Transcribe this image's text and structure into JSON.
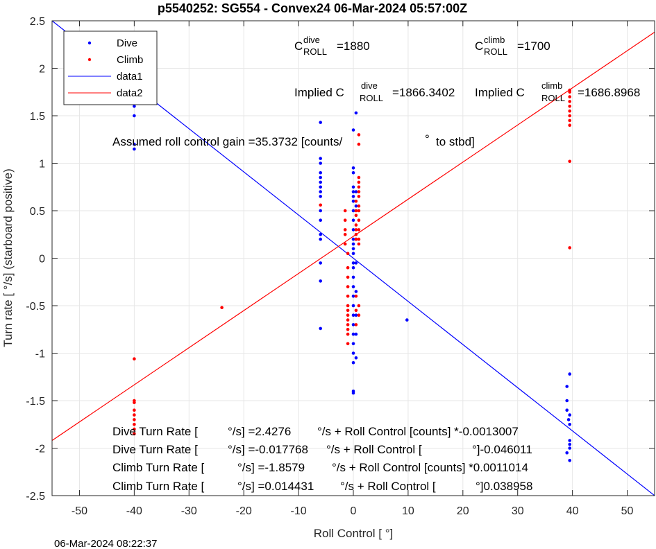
{
  "chart_data": {
    "type": "scatter",
    "title": "p5540252: SG554 - Convex24 06-Mar-2024 05:57:00Z",
    "xlabel": "Roll Control [   °]",
    "ylabel": "Turn rate [   °/s] (starboard positive)",
    "xlim": [
      -55,
      55
    ],
    "ylim": [
      -2.5,
      2.5
    ],
    "xticks": [
      -50,
      -40,
      -30,
      -20,
      -10,
      0,
      10,
      20,
      30,
      40,
      50
    ],
    "yticks": [
      -2.5,
      -2,
      -1.5,
      -1,
      -0.5,
      0,
      0.5,
      1,
      1.5,
      2,
      2.5
    ],
    "ytick_labels": [
      "-2.5",
      "-2",
      "-1.5",
      "-1",
      "-0.5",
      "0",
      "0.5",
      "1",
      "1.5",
      "2",
      "2.5"
    ],
    "grid": true,
    "legend_position": "top-left",
    "series": [
      {
        "name": "Dive",
        "kind": "scatter",
        "color": "#0000ff",
        "points": [
          [
            -40,
            2.2
          ],
          [
            -40,
            2.1
          ],
          [
            -40,
            2.05
          ],
          [
            -40,
            1.95
          ],
          [
            -40,
            1.85
          ],
          [
            -40,
            1.8
          ],
          [
            -40,
            1.75
          ],
          [
            -40,
            1.6
          ],
          [
            -40,
            1.5
          ],
          [
            -40,
            1.15
          ],
          [
            -40,
            1.2
          ],
          [
            -6,
            1.43
          ],
          [
            -6,
            1.05
          ],
          [
            -6,
            1.0
          ],
          [
            -6,
            0.9
          ],
          [
            -6,
            0.85
          ],
          [
            -6,
            0.8
          ],
          [
            -6,
            0.75
          ],
          [
            -6,
            0.7
          ],
          [
            -6,
            0.65
          ],
          [
            -6,
            0.5
          ],
          [
            -6,
            0.4
          ],
          [
            -6,
            0.25
          ],
          [
            -6,
            0.2
          ],
          [
            -6,
            -0.05
          ],
          [
            -6,
            -0.24
          ],
          [
            -6,
            -0.74
          ],
          [
            0,
            1.35
          ],
          [
            0,
            0.95
          ],
          [
            0,
            0.9
          ],
          [
            0,
            0.75
          ],
          [
            0,
            0.7
          ],
          [
            0,
            0.65
          ],
          [
            0,
            0.6
          ],
          [
            0,
            0.5
          ],
          [
            0,
            0.4
          ],
          [
            0,
            0.3
          ],
          [
            0,
            0.2
          ],
          [
            0,
            0.15
          ],
          [
            0,
            0.1
          ],
          [
            0,
            0.05
          ],
          [
            0,
            -0.05
          ],
          [
            0,
            -0.1
          ],
          [
            0,
            -0.2
          ],
          [
            0,
            -0.3
          ],
          [
            0,
            -0.4
          ],
          [
            0,
            -0.5
          ],
          [
            0,
            -0.6
          ],
          [
            0,
            -0.7
          ],
          [
            0,
            -0.8
          ],
          [
            0,
            -0.9
          ],
          [
            0,
            -1.0
          ],
          [
            0,
            -1.1
          ],
          [
            0,
            -1.4
          ],
          [
            0,
            -1.42
          ],
          [
            0.5,
            1.53
          ],
          [
            0.5,
            0.7
          ],
          [
            0.5,
            0.55
          ],
          [
            0.5,
            0.2
          ],
          [
            0.5,
            -0.05
          ],
          [
            0.5,
            -0.35
          ],
          [
            0.5,
            -0.6
          ],
          [
            0.5,
            -0.8
          ],
          [
            0.5,
            -1.05
          ],
          [
            9.8,
            -0.65
          ],
          [
            39,
            -1.6
          ],
          [
            39,
            -1.35
          ],
          [
            39,
            -1.5
          ],
          [
            39,
            -2.05
          ],
          [
            39.3,
            -1.7
          ],
          [
            39.5,
            -1.65
          ],
          [
            39.5,
            -1.75
          ],
          [
            39.5,
            -1.92
          ],
          [
            39.5,
            -1.96
          ],
          [
            39.5,
            -2.0
          ],
          [
            39.5,
            -2.13
          ],
          [
            39.5,
            -1.22
          ]
        ]
      },
      {
        "name": "Climb",
        "kind": "scatter",
        "color": "#ff0000",
        "points": [
          [
            -40,
            -1.06
          ],
          [
            -40,
            -1.5
          ],
          [
            -40,
            -1.52
          ],
          [
            -40,
            -1.6
          ],
          [
            -40,
            -1.65
          ],
          [
            -40,
            -1.7
          ],
          [
            -40,
            -1.75
          ],
          [
            -40,
            -1.8
          ],
          [
            -40,
            -1.85
          ],
          [
            -24,
            -0.52
          ],
          [
            -6,
            0.56
          ],
          [
            -1.5,
            0.5
          ],
          [
            -1.5,
            0.4
          ],
          [
            -1.5,
            0.3
          ],
          [
            -1.5,
            0.25
          ],
          [
            -1.5,
            0.15
          ],
          [
            -1,
            0.05
          ],
          [
            -1,
            -0.1
          ],
          [
            -1,
            -0.2
          ],
          [
            -1,
            -0.3
          ],
          [
            -1,
            -0.4
          ],
          [
            -1,
            -0.5
          ],
          [
            -1,
            -0.55
          ],
          [
            -1,
            -0.6
          ],
          [
            -1,
            -0.65
          ],
          [
            -1,
            -0.7
          ],
          [
            -1,
            -0.75
          ],
          [
            -1,
            -0.8
          ],
          [
            -1,
            -0.9
          ],
          [
            0.5,
            0.6
          ],
          [
            0.5,
            0.5
          ],
          [
            0.5,
            0.45
          ],
          [
            0.5,
            0.35
          ],
          [
            0.5,
            0.3
          ],
          [
            0.5,
            0.25
          ],
          [
            0.5,
            0.2
          ],
          [
            0.5,
            -0.4
          ],
          [
            0.5,
            -0.55
          ],
          [
            0.5,
            -0.7
          ],
          [
            1,
            1.3
          ],
          [
            1,
            1.2
          ],
          [
            1,
            0.85
          ],
          [
            1,
            0.8
          ],
          [
            1,
            0.75
          ],
          [
            1,
            0.7
          ],
          [
            1,
            0.65
          ],
          [
            1,
            0.55
          ],
          [
            1,
            0.5
          ],
          [
            1,
            0.4
          ],
          [
            1,
            0.3
          ],
          [
            1,
            0.2
          ],
          [
            1,
            0.15
          ],
          [
            1,
            -0.5
          ],
          [
            1,
            -0.6
          ],
          [
            39.5,
            1.77
          ],
          [
            39.5,
            1.75
          ],
          [
            39.5,
            1.7
          ],
          [
            39.5,
            1.65
          ],
          [
            39.5,
            1.6
          ],
          [
            39.5,
            1.55
          ],
          [
            39.5,
            1.5
          ],
          [
            39.5,
            1.45
          ],
          [
            39.5,
            1.4
          ],
          [
            39.5,
            1.02
          ],
          [
            39.5,
            0.11
          ]
        ]
      },
      {
        "name": "data1",
        "kind": "line",
        "color": "#0000ff",
        "points": [
          [
            -55,
            2.5
          ],
          [
            55,
            -2.5
          ]
        ]
      },
      {
        "name": "data2",
        "kind": "line",
        "color": "#ff0000",
        "points": [
          [
            -55,
            -1.92
          ],
          [
            55,
            2.38
          ]
        ]
      }
    ],
    "annotations": {
      "c_dive_main": "C",
      "c_dive_sup": "dive",
      "c_dive_sub": "ROLL",
      "c_dive_val": "=1880",
      "c_climb_main": "C",
      "c_climb_sup": "climb",
      "c_climb_sub": "ROLL",
      "c_climb_val": "=1700",
      "impl_dive_main": "Implied C",
      "impl_dive_sup": "dive",
      "impl_dive_sub": "ROLL",
      "impl_dive_val": "=1866.3402",
      "impl_climb_main": "Implied C",
      "impl_climb_sup": "climb",
      "impl_climb_sub": "ROLL",
      "impl_climb_val": "=1686.8968",
      "gain_text": "Assumed roll control gain =35.3732 [counts/",
      "gain_deg": "°",
      "gain_tail": "to stbd]",
      "fit1_a": "Dive Turn Rate [",
      "fit1_b": "°/s] =2.4276",
      "fit1_c": "°/s + Roll Control [counts] *-0.0013007",
      "fit2_a": "Dive Turn Rate [",
      "fit2_b": "°/s] =-0.017768",
      "fit2_c": "°/s + Roll Control [",
      "fit2_d": "°]-0.046011",
      "fit3_a": "Climb Turn Rate [",
      "fit3_b": "°/s] =-1.8579",
      "fit3_c": "°/s + Roll Control [counts] *0.0011014",
      "fit4_a": "Climb Turn Rate [",
      "fit4_b": "°/s] =0.014431",
      "fit4_c": "°/s + Roll Control [",
      "fit4_d": "°]0.038958"
    },
    "footer_timestamp": "06-Mar-2024 08:22:37"
  }
}
